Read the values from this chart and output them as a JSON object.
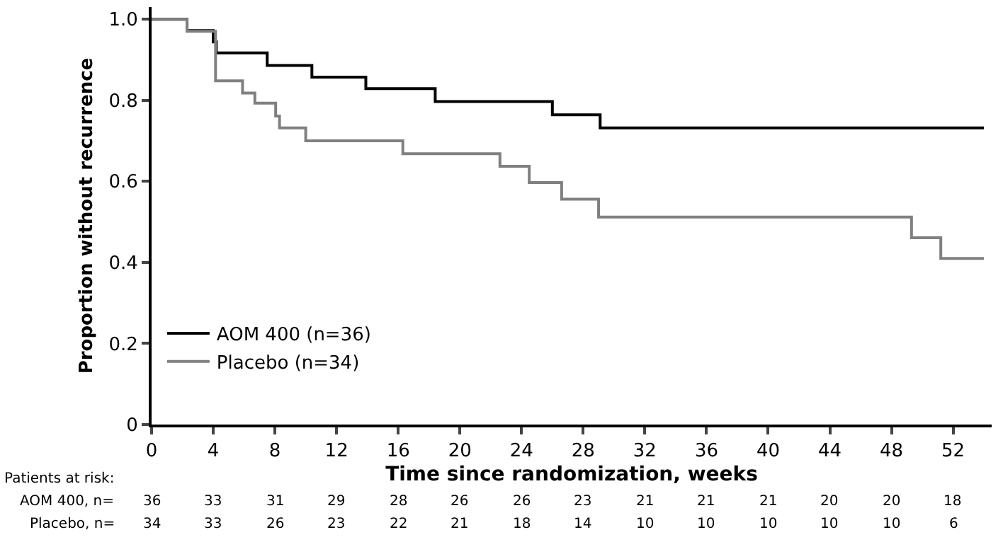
{
  "chart_data": {
    "type": "step",
    "xlabel": "Time since randomization, weeks",
    "ylabel": "Proportion without recurrence",
    "xlim": [
      0,
      54.5
    ],
    "xticks": [
      0,
      4,
      8,
      12,
      16,
      20,
      24,
      28,
      32,
      36,
      40,
      44,
      48,
      52
    ],
    "ylim": [
      0,
      1.03
    ],
    "yticks": [
      0,
      {
        "value": 0.2,
        "label": "0.2"
      },
      {
        "value": 0.4,
        "label": "0.4"
      },
      {
        "value": 0.6,
        "label": "0.6"
      },
      {
        "value": 0.8,
        "label": "0.8"
      },
      {
        "value": 1,
        "label": "1.0"
      }
    ],
    "series": [
      {
        "name": "AOM 400 (n=36)",
        "color": "#000000",
        "x": [
          0,
          2.3,
          4.0,
          4.2,
          7.5,
          10.4,
          13.9,
          18.4,
          26.0,
          29.1,
          54
        ],
        "values": [
          1.0,
          0.972,
          0.944,
          0.917,
          0.886,
          0.857,
          0.829,
          0.797,
          0.764,
          0.732,
          0.732
        ]
      },
      {
        "name": "Placebo (n=34)",
        "color": "#808080",
        "x": [
          0,
          2.3,
          4.15,
          5.9,
          6.7,
          8.05,
          8.3,
          10.0,
          16.3,
          22.6,
          24.5,
          26.6,
          29.0,
          49.3,
          51.2,
          54
        ],
        "values": [
          1.0,
          0.97,
          0.848,
          0.818,
          0.793,
          0.761,
          0.732,
          0.7,
          0.668,
          0.637,
          0.597,
          0.556,
          0.512,
          0.461,
          0.41,
          0.41
        ]
      }
    ],
    "legend": "bottom left",
    "grid": false,
    "marker": "none",
    "line_style": "solid",
    "annotations": [
      "Patients at risk:",
      "AOM 400, n=",
      "36 33 31 29 28 26 26 23 21 21 21 20 20 18",
      "Placebo, n=",
      "34 33 26 23 22 21 18 14 10 10 10 10 10 6"
    ]
  }
}
